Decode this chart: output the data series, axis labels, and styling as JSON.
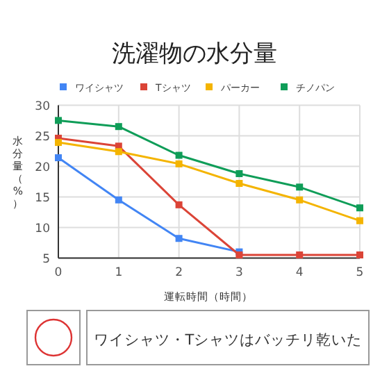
{
  "chart_data": {
    "type": "line",
    "title": "洗濯物の水分量",
    "xlabel": "運転時間（時間）",
    "ylabel": "水分量（%）",
    "x": [
      0,
      1,
      2,
      3,
      4,
      5
    ],
    "xlim": [
      0,
      5
    ],
    "xticks": [
      0,
      1,
      2,
      3,
      4,
      5
    ],
    "ylim": [
      5,
      30
    ],
    "yticks": [
      5,
      10,
      15,
      20,
      25,
      30
    ],
    "grid": true,
    "legend": "top",
    "marker": "square",
    "series": [
      {
        "name": "ワイシャツ",
        "color": "#4285f4",
        "values": [
          21.4,
          14.5,
          8.2,
          6.0,
          null,
          null
        ]
      },
      {
        "name": "Tシャツ",
        "color": "#db4437",
        "values": [
          24.6,
          23.3,
          13.7,
          5.5,
          5.5,
          5.5
        ]
      },
      {
        "name": "パーカー",
        "color": "#f4b400",
        "values": [
          23.9,
          22.4,
          20.4,
          17.2,
          14.5,
          11.1
        ]
      },
      {
        "name": "チノパン",
        "color": "#0f9d58",
        "values": [
          27.5,
          26.5,
          21.8,
          18.8,
          16.6,
          13.2
        ]
      }
    ],
    "annotations": [
      "ワイシャツ・Tシャツはバッチリ乾いた"
    ]
  }
}
